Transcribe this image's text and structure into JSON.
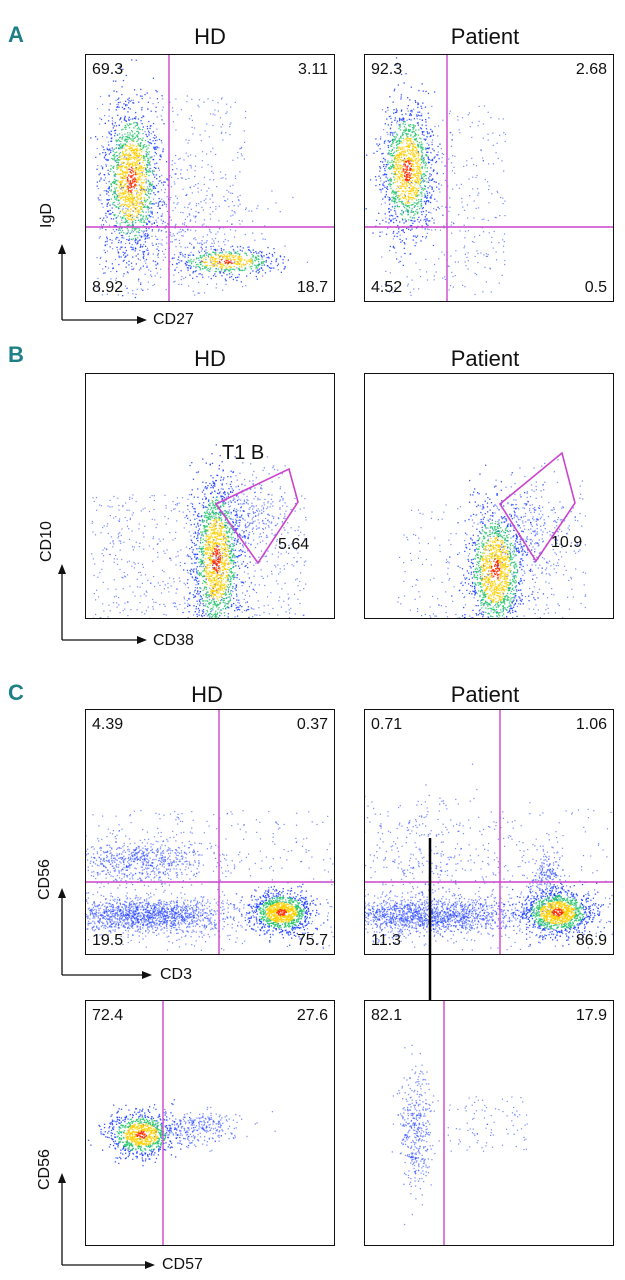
{
  "sections": {
    "A": {
      "letter": "A",
      "hd_title": "HD",
      "patient_title": "Patient",
      "x_axis": "CD27",
      "y_axis": "IgD",
      "hd": {
        "tl": "69.3",
        "tr": "3.11",
        "bl": "8.92",
        "br": "18.7"
      },
      "patient": {
        "tl": "92.3",
        "tr": "2.68",
        "bl": "4.52",
        "br": "0.5"
      }
    },
    "B": {
      "letter": "B",
      "hd_title": "HD",
      "patient_title": "Patient",
      "x_axis": "CD38",
      "y_axis": "CD10",
      "gate_label": "T1 B",
      "hd_value": "5.64",
      "patient_value": "10.9"
    },
    "C": {
      "letter": "C",
      "hd_title": "HD",
      "patient_title": "Patient",
      "top": {
        "x_axis": "CD3",
        "y_axis": "CD56",
        "hd": {
          "tl": "4.39",
          "tr": "0.37",
          "bl": "19.5",
          "br": "75.7"
        },
        "patient": {
          "tl": "0.71",
          "tr": "1.06",
          "bl": "11.3",
          "br": "86.9"
        }
      },
      "bottom": {
        "x_axis": "CD57",
        "y_axis": "CD56",
        "hd": {
          "left": "72.4",
          "right": "27.6"
        },
        "patient": {
          "left": "82.1",
          "right": "17.9"
        }
      }
    }
  },
  "colors": {
    "gate": "#cc44cc",
    "letter": "#1f7f86",
    "density_low": "#1a3cff",
    "density_mid": "#22c46a",
    "density_high": "#ffd000",
    "density_peak": "#ff2a00"
  }
}
